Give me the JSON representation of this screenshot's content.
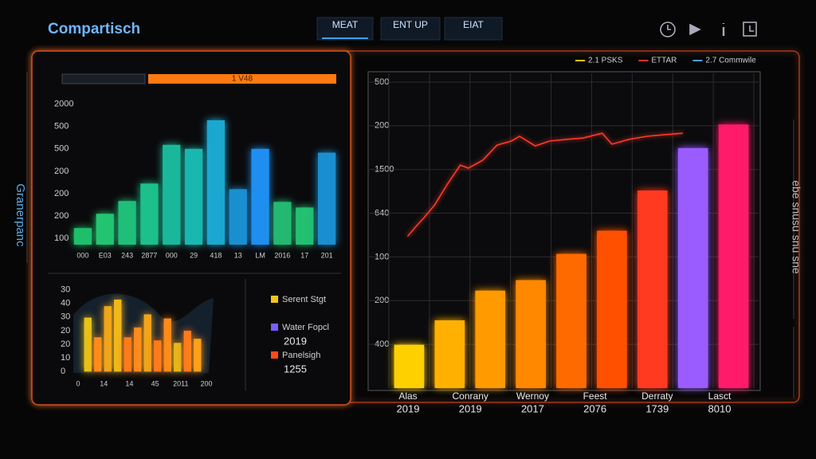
{
  "header": {
    "title": "Compartisch",
    "tabs": [
      "MEAT",
      "ENT UP",
      "EIAT"
    ]
  },
  "side_labels": {
    "left": "Granerpanc",
    "right": "ebe snusu snu sne"
  },
  "panel_left": {
    "progress_label": "1 V48",
    "top_chart": {
      "type": "bar",
      "categories": [
        "000",
        "E03",
        "243",
        "2877",
        "000",
        "29",
        "418",
        "13",
        "LM",
        "2016",
        "17",
        "201"
      ],
      "values": [
        1.46,
        2.1,
        2.67,
        3.45,
        5.18,
        5.0,
        6.28,
        3.2,
        5.0,
        2.63,
        2.38,
        4.83
      ],
      "colors": [
        "#1fbf6a",
        "#22c472",
        "#1fbf7a",
        "#1cc08a",
        "#1ab89a",
        "#18b8b0",
        "#1aa8d0",
        "#1a8fd0",
        "#1e8ff0",
        "#24b870",
        "#22c070",
        "#1a8fd0"
      ],
      "ylim": [
        0.72,
        7.2
      ],
      "yticks": [
        {
          "value": 1,
          "label": "100"
        },
        {
          "value": 2,
          "label": "200"
        },
        {
          "value": 3,
          "label": "200"
        },
        {
          "value": 4,
          "label": "200"
        },
        {
          "value": 5,
          "label": "500"
        },
        {
          "value": 6,
          "label": "500"
        },
        {
          "value": 7,
          "label": "2000"
        }
      ]
    },
    "bottom_chart": {
      "type": "bar",
      "values": [
        3.95,
        2.51,
        4.79,
        5.27,
        2.51,
        3.23,
        4.19,
        2.28,
        3.89,
        2.1,
        2.99,
        2.4
      ],
      "colors": [
        "#e6c21a",
        "#ff8a1a",
        "#f0a51a",
        "#f2b81a",
        "#ff7a1a",
        "#ff8a1a",
        "#f0a51a",
        "#ff7a1a",
        "#ff8a1a",
        "#e6b81a",
        "#ff7a1a",
        "#ffa01a"
      ],
      "x_labels": [
        "0",
        "14",
        "14",
        "45",
        "2011",
        "200"
      ],
      "ylim": [
        -0.1,
        6.2
      ],
      "yticks": [
        {
          "value": 0,
          "label": "0"
        },
        {
          "value": 1,
          "label": "10"
        },
        {
          "value": 2,
          "label": "20"
        },
        {
          "value": 3,
          "label": "20"
        },
        {
          "value": 4,
          "label": "30"
        },
        {
          "value": 5,
          "label": "40"
        },
        {
          "value": 6,
          "label": "30"
        }
      ],
      "legend": [
        {
          "name": "Serent Stgt",
          "color": "#f5c518"
        },
        {
          "name": "Water Fopcl",
          "color": "#7a5cff",
          "detail": "2019"
        },
        {
          "name": "Panelsigh",
          "color": "#ff4a1a",
          "detail": "1255"
        }
      ]
    }
  },
  "panel_right": {
    "chart": {
      "type": "bar",
      "values": [
        0.99,
        1.55,
        2.23,
        2.47,
        3.07,
        3.6,
        4.52,
        5.49,
        6.03
      ],
      "colors": [
        "#ffd000",
        "#ffb000",
        "#ff9a00",
        "#ff8800",
        "#ff6a00",
        "#ff5000",
        "#ff3a20",
        "#9a5cff",
        "#ff1a6a"
      ],
      "x_labels": [
        {
          "name": "Alas",
          "year": "2019"
        },
        {
          "name": "Conrany",
          "year": "2019"
        },
        {
          "name": "Wernoy",
          "year": "2017"
        },
        {
          "name": "Feest",
          "year": "2076"
        },
        {
          "name": "Derraty",
          "year": "1739"
        },
        {
          "name": "Lasct",
          "year": "8010"
        }
      ],
      "line": {
        "color": "#ff3a2a",
        "x": [
          -0.04,
          0.16,
          0.35,
          0.63,
          0.94,
          1.26,
          1.46,
          1.81,
          2.17,
          2.52,
          2.72,
          3.11,
          3.46,
          3.9,
          4.29,
          4.76,
          5.0,
          5.43,
          5.87,
          6.34,
          6.75
        ],
        "values": [
          3.47,
          3.69,
          3.88,
          4.19,
          4.66,
          5.1,
          5.03,
          5.21,
          5.56,
          5.65,
          5.76,
          5.54,
          5.65,
          5.69,
          5.72,
          5.83,
          5.58,
          5.69,
          5.76,
          5.8,
          5.83
        ]
      },
      "xlim": [
        -0.5,
        8.5
      ],
      "ylim": [
        0,
        7.2
      ],
      "yticks": [
        {
          "value": 1,
          "label": "400"
        },
        {
          "value": 2,
          "label": "200"
        },
        {
          "value": 3,
          "label": "100"
        },
        {
          "value": 4,
          "label": "640"
        },
        {
          "value": 5,
          "label": "1500"
        },
        {
          "value": 6,
          "label": "200"
        },
        {
          "value": 7,
          "label": "500"
        }
      ],
      "grid": true,
      "legend": [
        {
          "name": "2.1 PSKS",
          "color": "#ffc400"
        },
        {
          "name": "ETTAR",
          "color": "#ff3030"
        },
        {
          "name": "2.7 Commwile",
          "color": "#4aa0ff"
        }
      ]
    }
  }
}
